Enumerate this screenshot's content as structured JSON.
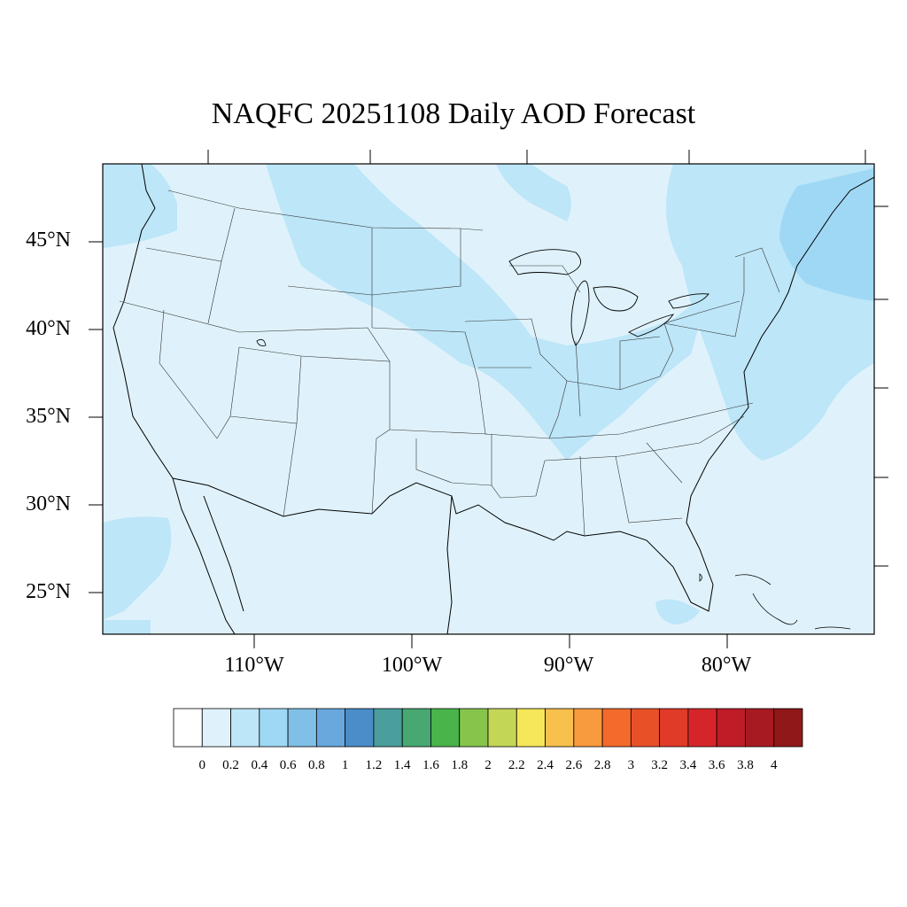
{
  "title": "NAQFC 20251108 Daily AOD Forecast",
  "map": {
    "region": "CONUS",
    "background_color": "#dff2fb",
    "lat_ticks": [
      "45°N",
      "40°N",
      "35°N",
      "30°N",
      "25°N"
    ],
    "lon_ticks": [
      "110°W",
      "100°W",
      "90°W",
      "80°W"
    ],
    "features": [
      "coastline",
      "state-borders",
      "great-lakes"
    ]
  },
  "colorbar": {
    "colors": [
      "#ffffff",
      "#dff2fb",
      "#bde6f8",
      "#9fd8f4",
      "#80bfe6",
      "#68a8dc",
      "#4a8dc8",
      "#4a9e9e",
      "#48a872",
      "#48b44a",
      "#86c44c",
      "#c4d656",
      "#f5e65a",
      "#f8c04c",
      "#f89a3e",
      "#f46a2c",
      "#e85028",
      "#e03a28",
      "#d6252a",
      "#c01c28",
      "#a81a22",
      "#901818"
    ],
    "labels": [
      "0",
      "0.2",
      "0.4",
      "0.6",
      "0.8",
      "1",
      "1.2",
      "1.4",
      "1.6",
      "1.8",
      "2",
      "2.2",
      "2.4",
      "2.6",
      "2.8",
      "3",
      "3.2",
      "3.4",
      "3.6",
      "3.8",
      "4"
    ]
  }
}
